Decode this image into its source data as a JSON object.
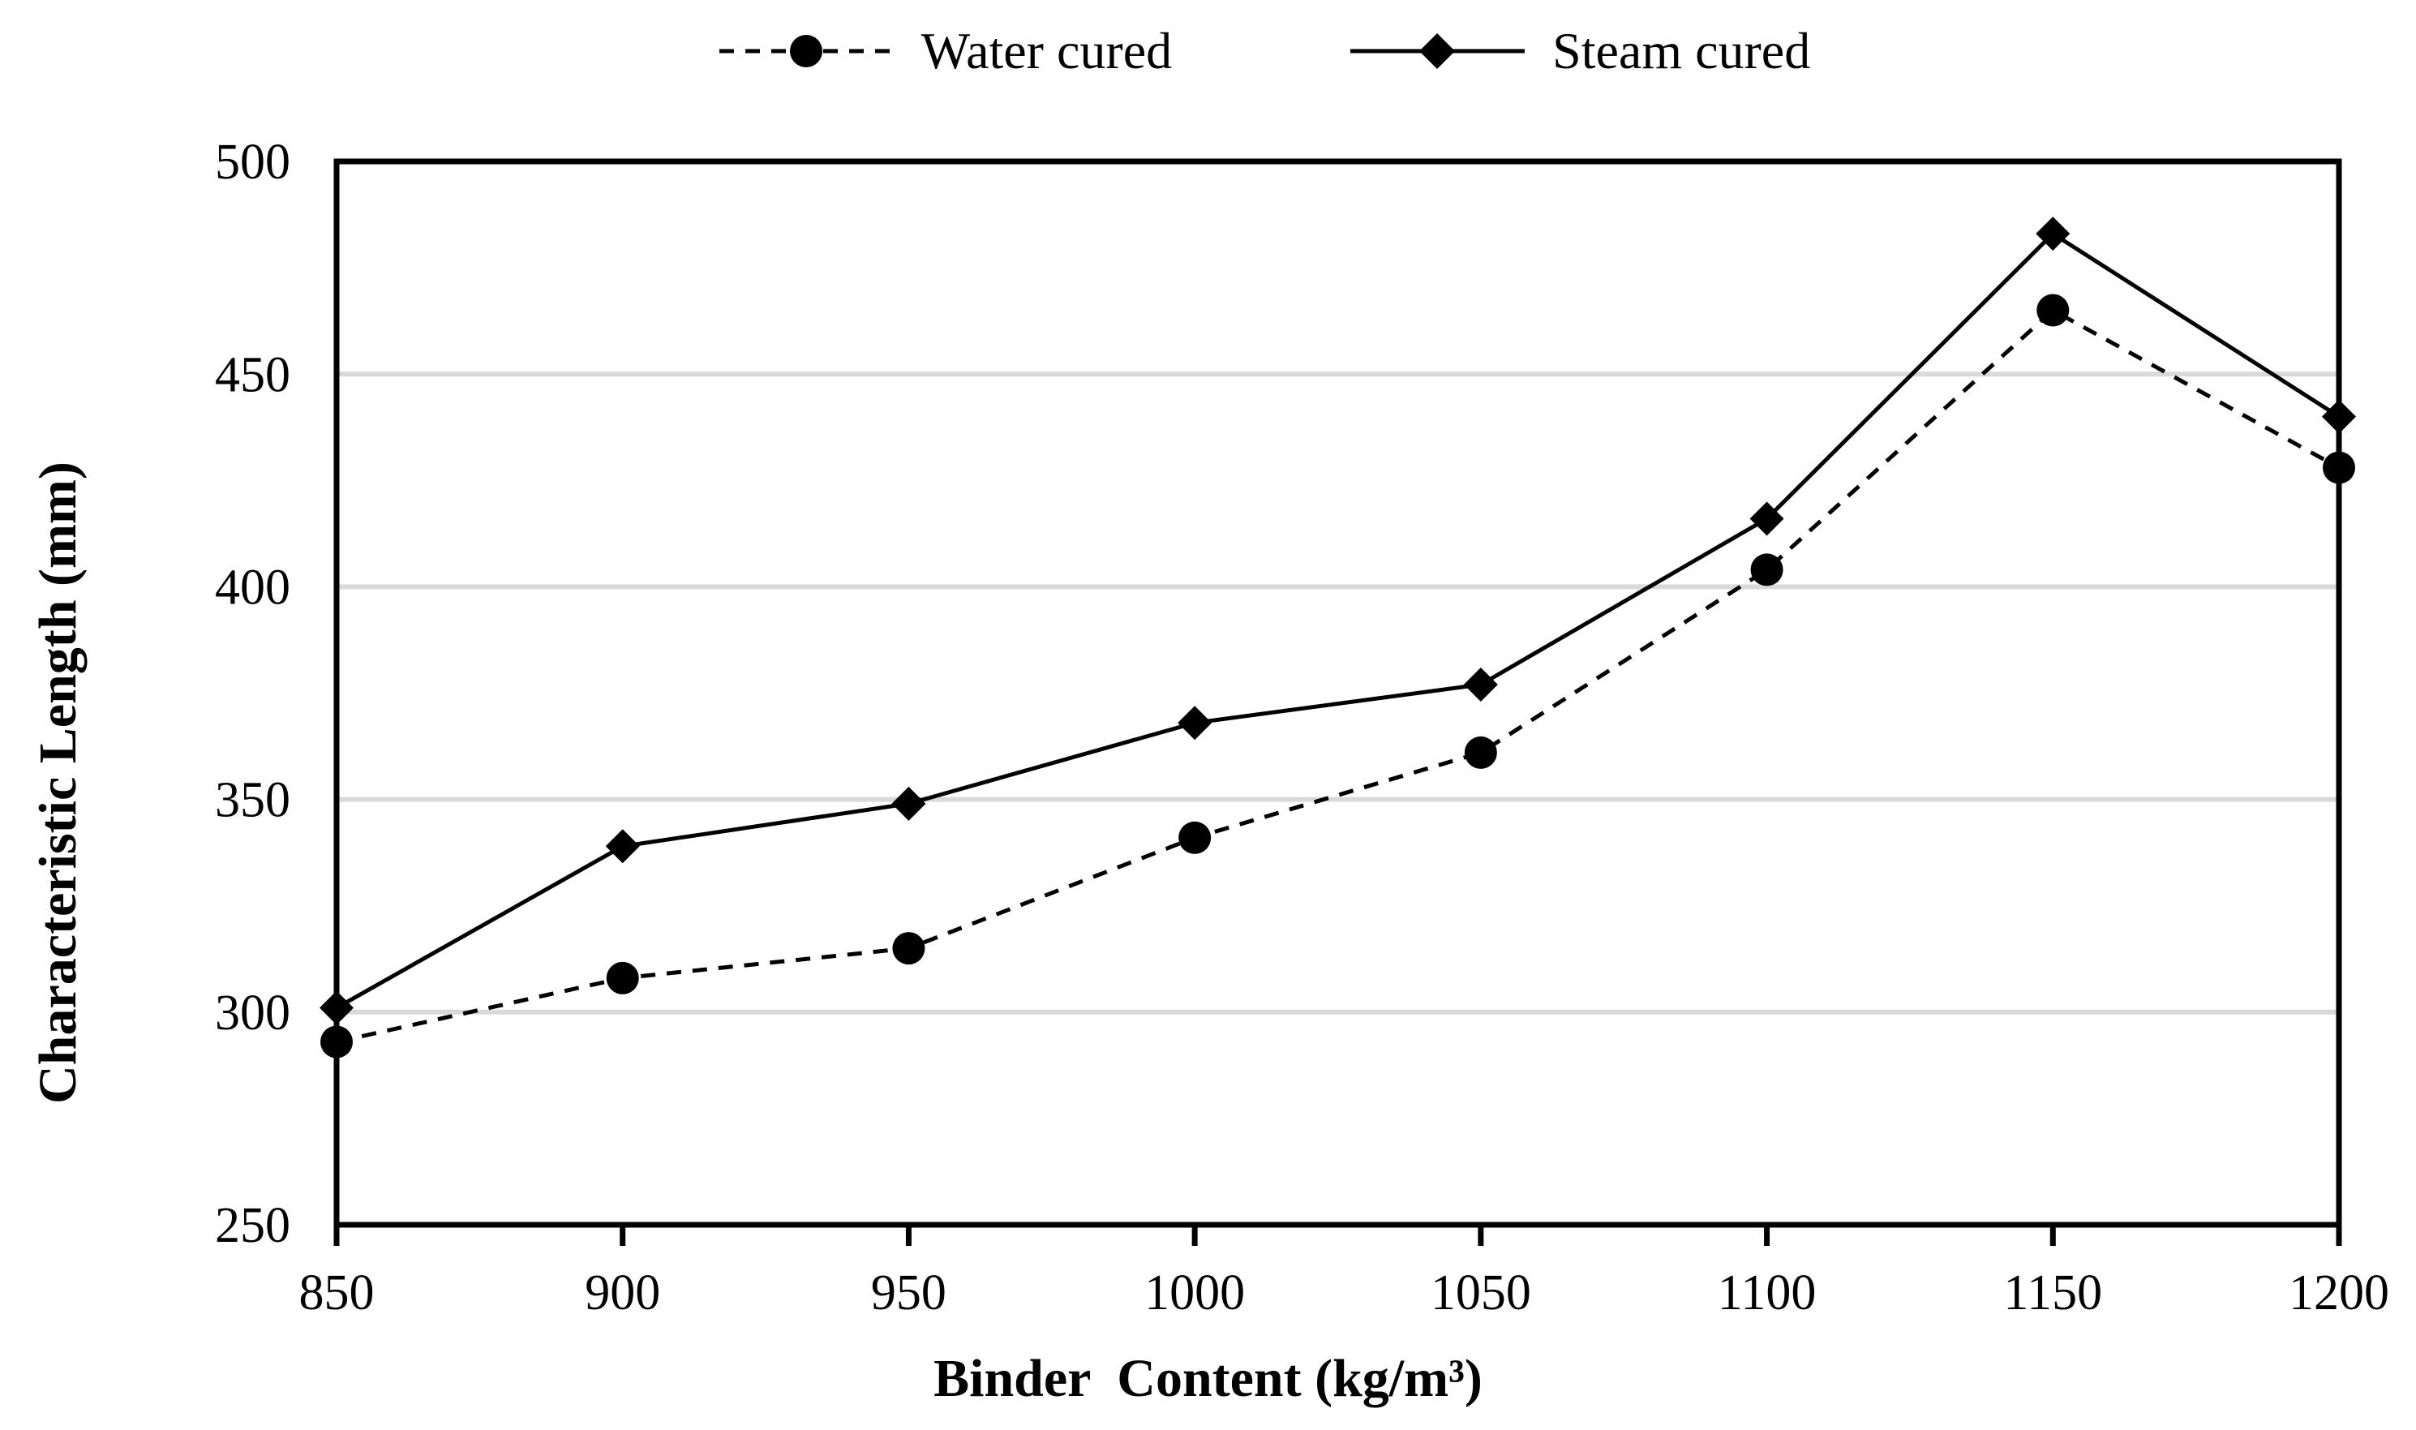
{
  "chart_data": {
    "type": "line",
    "title": "",
    "xlabel": "Binder  Content (kg/m³)",
    "ylabel": "Characteristic Length (mm)",
    "x": [
      850,
      900,
      950,
      1000,
      1050,
      1100,
      1150,
      1200
    ],
    "x_ticks": [
      850,
      900,
      950,
      1000,
      1050,
      1100,
      1150,
      1200
    ],
    "y_ticks": [
      250,
      300,
      350,
      400,
      450,
      500
    ],
    "xlim": [
      850,
      1200
    ],
    "ylim": [
      250,
      500
    ],
    "grid": "horizontal",
    "legend_position": "top-center",
    "series": [
      {
        "name": "Water cured",
        "marker": "circle",
        "line_style": "dashed",
        "values": [
          293,
          308,
          315,
          341,
          361,
          404,
          465,
          428
        ]
      },
      {
        "name": "Steam cured",
        "marker": "diamond",
        "line_style": "solid",
        "values": [
          301,
          339,
          349,
          368,
          377,
          416,
          483,
          440
        ]
      }
    ],
    "colors": {
      "series": "#000000",
      "axis": "#000000",
      "gridline": "#d9d9d9",
      "background": "#ffffff"
    }
  }
}
